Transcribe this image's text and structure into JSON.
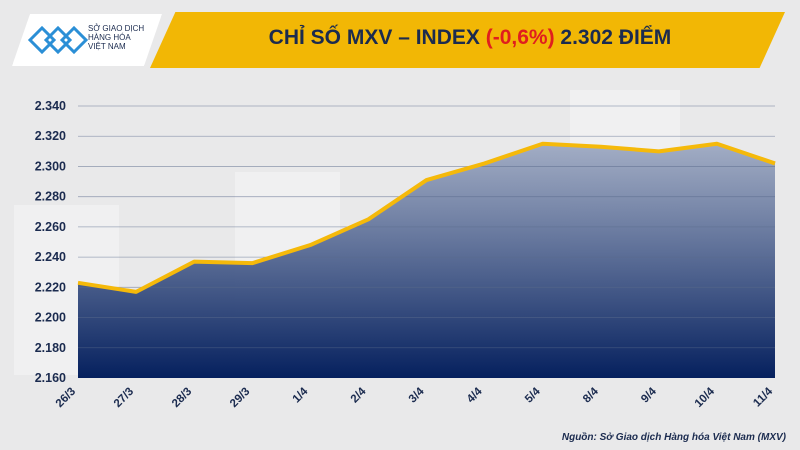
{
  "logo": {
    "lines": [
      "SỞ GIAO DỊCH",
      "HÀNG HÓA",
      "VIỆT NAM"
    ]
  },
  "header": {
    "title_prefix": "CHỈ SỐ MXV – INDEX ",
    "change": "(-0,6%)",
    "title_suffix": " 2.302 ĐIỂM"
  },
  "source": "Nguồn: Sở Giao dịch Hàng hóa Việt Nam (MXV)",
  "colors": {
    "banner": "#f2b705",
    "line": "#f5b90a",
    "area_top": "#9aa6c0",
    "area_bottom": "#05205e",
    "negative": "#e01e1e"
  },
  "chart_data": {
    "type": "area",
    "title": "CHỈ SỐ MXV – INDEX (-0,6%) 2.302 ĐIỂM",
    "categories": [
      "26/3",
      "27/3",
      "28/3",
      "29/3",
      "1/4",
      "2/4",
      "3/4",
      "4/4",
      "5/4",
      "8/4",
      "9/4",
      "10/4",
      "11/4"
    ],
    "values": [
      2223,
      2217,
      2237,
      2236,
      2248,
      2265,
      2291,
      2302,
      2315,
      2313,
      2310,
      2315,
      2302
    ],
    "ylim": [
      2160,
      2340
    ],
    "yticks": [
      "2.160",
      "2.180",
      "2.200",
      "2.220",
      "2.240",
      "2.260",
      "2.280",
      "2.300",
      "2.320",
      "2.340"
    ],
    "grid": true
  }
}
